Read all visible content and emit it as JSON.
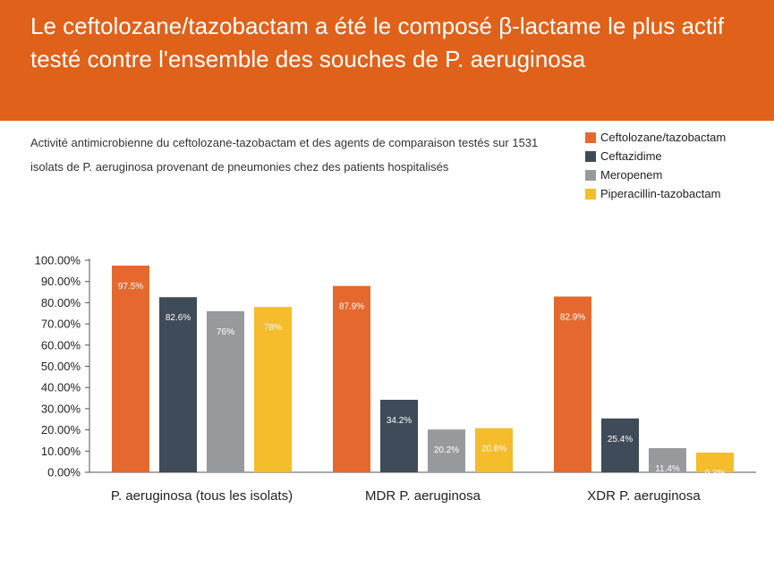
{
  "title": "Le ceftolozane/tazobactam a été le composé β-lactame le plus actif testé contre l'ensemble des souches de P. aeruginosa",
  "subtitle": "Activité antimicrobienne du ceftolozane-tazobactam et des agents de comparaison testés sur 1531 isolats de P. aeruginosa provenant de pneumonies chez des patients hospitalisés",
  "colors": {
    "banner": "#e06119",
    "ceftolozane": "#e5692e",
    "ceftazidime": "#3f4b58",
    "meropenem": "#969a9d",
    "piperacillin": "#f5bd2b"
  },
  "chart_data": {
    "type": "bar",
    "categories": [
      "P. aeruginosa (tous les isolats)",
      "MDR P. aeruginosa",
      "XDR P. aeruginosa"
    ],
    "series": [
      {
        "name": "Ceftolozane/tazobactam",
        "color": "#e5692e",
        "values": [
          97.5,
          87.9,
          82.9
        ],
        "labels": [
          "97.5%",
          "87.9%",
          "82.9%"
        ]
      },
      {
        "name": "Ceftazidime",
        "color": "#3f4b58",
        "values": [
          82.6,
          34.2,
          25.4
        ],
        "labels": [
          "82.6%",
          "34.2%",
          "25.4%"
        ]
      },
      {
        "name": "Meropenem",
        "color": "#969a9d",
        "values": [
          76,
          20.2,
          11.4
        ],
        "labels": [
          "76%",
          "20.2%",
          "11.4%"
        ]
      },
      {
        "name": "Piperacillin-tazobactam",
        "color": "#f5bd2b",
        "values": [
          78,
          20.8,
          9.3
        ],
        "labels": [
          "78%",
          "20.8%",
          "9.3%"
        ]
      }
    ],
    "yticks": [
      "0.00%",
      "10.00%",
      "20.00%",
      "30.00%",
      "40.00%",
      "50.00%",
      "60.00%",
      "70.00%",
      "80.00%",
      "90.00%",
      "100.00%"
    ],
    "ylim": [
      0,
      100
    ],
    "grid": false,
    "legend": "top-right"
  }
}
